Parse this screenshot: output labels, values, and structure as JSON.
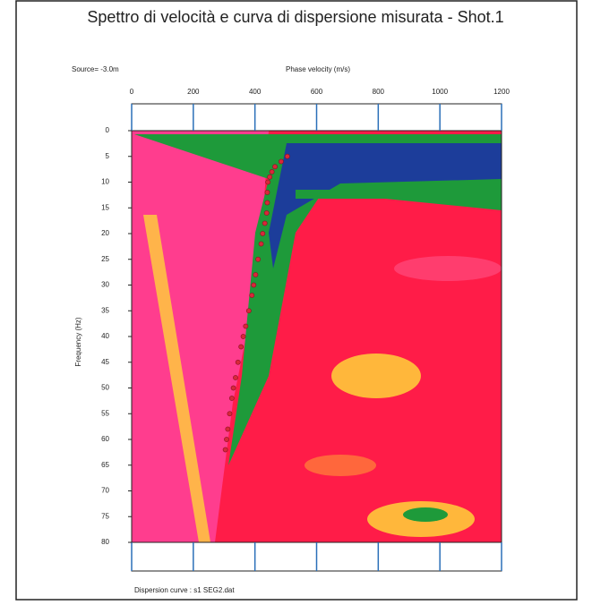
{
  "chart_data": {
    "type": "scatter",
    "title": "Spettro di velocità e curva di dispersione misurata - Shot.1",
    "annotation": "Source= -3.0m",
    "x_label": "Phase velocity (m/s)",
    "y_label": "Frequency (Hz)",
    "footnote": "Dispersion curve : s1  SEG2.dat",
    "x": [
      505,
      485,
      465,
      455,
      448,
      442,
      440,
      440,
      438,
      432,
      425,
      420,
      410,
      402,
      396,
      390,
      380,
      370,
      362,
      355,
      345,
      337,
      330,
      325,
      318,
      312,
      308,
      304
    ],
    "values": [
      5,
      6,
      7,
      8,
      9,
      10,
      12,
      14,
      16,
      18,
      20,
      22,
      25,
      28,
      30,
      32,
      35,
      38,
      40,
      42,
      45,
      48,
      50,
      52,
      55,
      58,
      60,
      62
    ],
    "color": "#d8283a",
    "xlim": [
      0,
      1200
    ],
    "xticks": [
      0,
      200,
      400,
      600,
      800,
      1000,
      1200
    ],
    "ylim": [
      0,
      80
    ],
    "yticks": [
      0,
      5,
      10,
      15,
      20,
      25,
      30,
      35,
      40,
      45,
      50,
      55,
      60,
      65,
      70,
      75,
      80
    ],
    "y_inverted": true,
    "x_axis_position": "top",
    "grid_color": "#2a6fb8"
  }
}
